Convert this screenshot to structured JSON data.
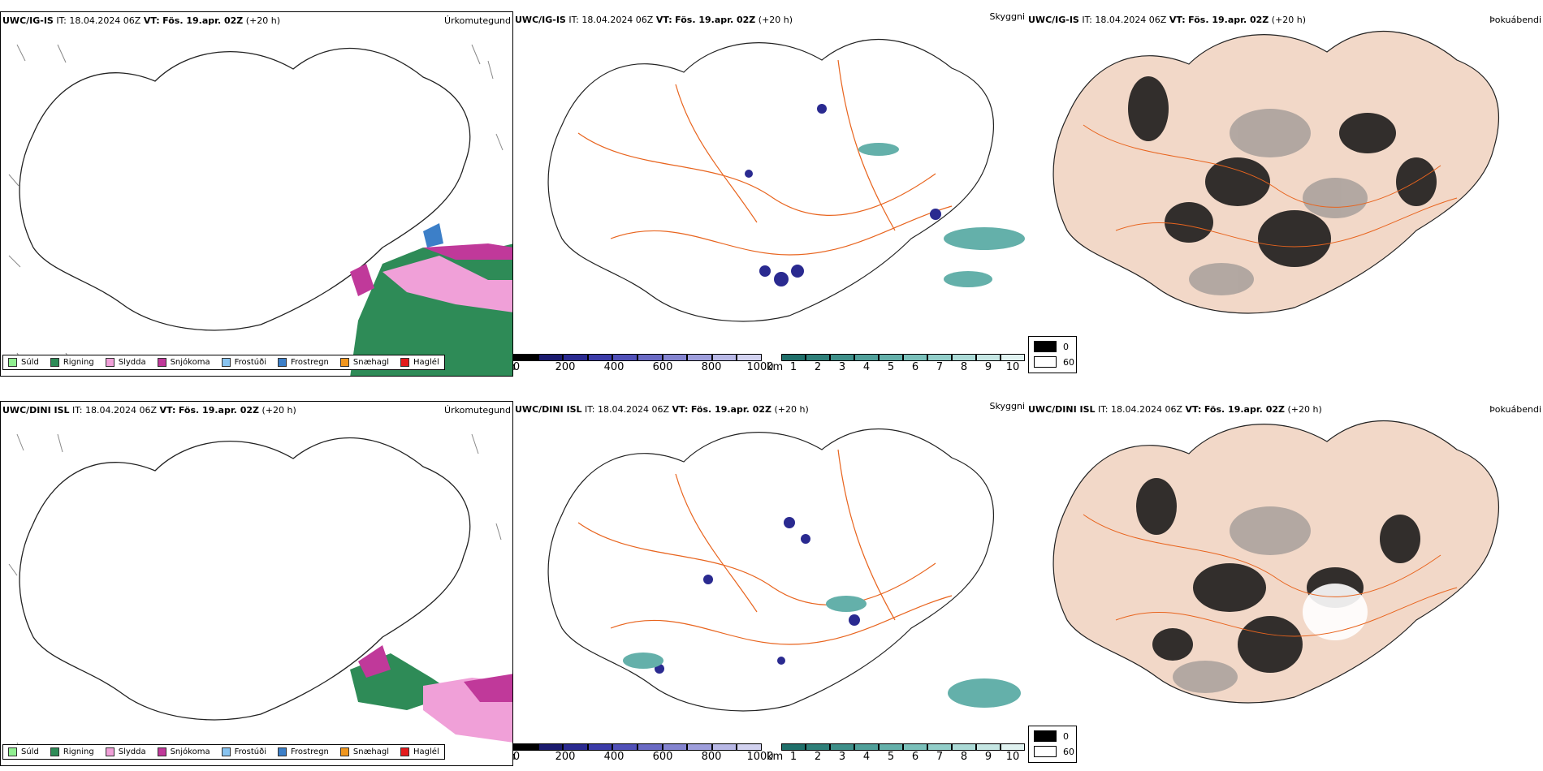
{
  "rows": [
    {
      "model": "UWC/IG-IS",
      "it_label": "IT:",
      "it_value": "18.04.2024 06Z",
      "vt_label": "VT:",
      "vt_value": "Fös. 19.apr. 02Z",
      "lead": "(+20 h)"
    },
    {
      "model": "UWC/DINI ISL",
      "it_label": "IT:",
      "it_value": "18.04.2024 06Z",
      "vt_label": "VT:",
      "vt_value": "Fös. 19.apr. 02Z",
      "lead": "(+20 h)"
    }
  ],
  "panel_titles": {
    "precip": "Úrkomutegund",
    "visibility": "Skyggni",
    "fog": "Þokuábendi"
  },
  "precip_legend": [
    {
      "label": "Súld",
      "color": "#90ee90"
    },
    {
      "label": "Rigning",
      "color": "#2e8b57"
    },
    {
      "label": "Slydda",
      "color": "#f0a0d8"
    },
    {
      "label": "Snjókoma",
      "color": "#c0399a"
    },
    {
      "label": "Frostúði",
      "color": "#87c3f0"
    },
    {
      "label": "Frostregn",
      "color": "#3c7fc8"
    },
    {
      "label": "Snæhagl",
      "color": "#f0961e"
    },
    {
      "label": "Haglél",
      "color": "#e41a1c"
    }
  ],
  "ceiling_bar": {
    "unit": "m",
    "ticks": [
      "0",
      "200",
      "400",
      "600",
      "800",
      "1000"
    ],
    "colors": [
      "#000000",
      "#1a1a6e",
      "#2a2a90",
      "#3b3ba8",
      "#5050b8",
      "#6a6ac4",
      "#8484d0",
      "#9e9edc",
      "#b8b8e6",
      "#d2d2f0"
    ]
  },
  "vis_bar": {
    "unit": "km",
    "ticks": [
      "1",
      "2",
      "3",
      "4",
      "5",
      "6",
      "7",
      "8",
      "9",
      "10"
    ],
    "colors": [
      "#1f6f6a",
      "#2e7f79",
      "#3e8f89",
      "#50a09a",
      "#64b0aa",
      "#7ac0ba",
      "#92cec9",
      "#abdad6",
      "#c5e6e3",
      "#e0f2f0"
    ]
  },
  "fog_key": {
    "high": "0",
    "low": "60",
    "high_color": "#000000",
    "low_color": "#ffffff"
  },
  "colors": {
    "land_tint": "#f2d8c8",
    "roads": "#e8641e",
    "coast": "#000000"
  }
}
